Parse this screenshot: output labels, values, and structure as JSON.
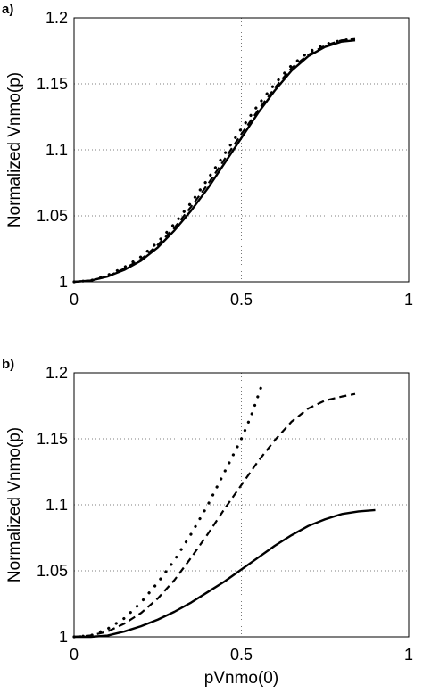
{
  "chart_data": [
    {
      "panel_label": "a)",
      "type": "line",
      "ylabel": "Normalized Vnmo(p)",
      "xlabel": "",
      "xlim": [
        0,
        1
      ],
      "ylim": [
        1,
        1.2
      ],
      "xticks": [
        "0",
        "0.5",
        "1"
      ],
      "yticks": [
        "1",
        "1.05",
        "1.1",
        "1.15",
        "1.2"
      ],
      "grid": true,
      "series": [
        {
          "style": "solid",
          "x": [
            0,
            0.05,
            0.1,
            0.15,
            0.2,
            0.25,
            0.3,
            0.35,
            0.4,
            0.45,
            0.5,
            0.55,
            0.6,
            0.65,
            0.7,
            0.75,
            0.8,
            0.84
          ],
          "y": [
            1.0,
            1.001,
            1.004,
            1.009,
            1.016,
            1.026,
            1.039,
            1.054,
            1.071,
            1.09,
            1.109,
            1.128,
            1.145,
            1.16,
            1.171,
            1.178,
            1.182,
            1.183
          ]
        },
        {
          "style": "dashed",
          "x": [
            0,
            0.05,
            0.1,
            0.15,
            0.2,
            0.25,
            0.3,
            0.35,
            0.4,
            0.45,
            0.5,
            0.55,
            0.6,
            0.65,
            0.7,
            0.75,
            0.8,
            0.84
          ],
          "y": [
            1.0,
            1.001,
            1.004,
            1.01,
            1.017,
            1.028,
            1.041,
            1.057,
            1.074,
            1.093,
            1.112,
            1.13,
            1.147,
            1.162,
            1.172,
            1.179,
            1.183,
            1.184
          ]
        },
        {
          "style": "dotted",
          "x": [
            0,
            0.05,
            0.1,
            0.15,
            0.2,
            0.25,
            0.3,
            0.35,
            0.4,
            0.45,
            0.5,
            0.55,
            0.6,
            0.65,
            0.7,
            0.75,
            0.8,
            0.84
          ],
          "y": [
            1.0,
            1.001,
            1.005,
            1.011,
            1.019,
            1.03,
            1.044,
            1.06,
            1.078,
            1.097,
            1.116,
            1.134,
            1.15,
            1.164,
            1.174,
            1.18,
            1.183,
            1.184
          ]
        }
      ]
    },
    {
      "panel_label": "b)",
      "type": "line",
      "ylabel": "Normalized Vnmo(p)",
      "xlabel": "pVnmo(0)",
      "xlim": [
        0,
        1
      ],
      "ylim": [
        1,
        1.2
      ],
      "xticks": [
        "0",
        "0.5",
        "1"
      ],
      "yticks": [
        "1",
        "1.05",
        "1.1",
        "1.15",
        "1.2"
      ],
      "grid": true,
      "series": [
        {
          "style": "solid",
          "x": [
            0,
            0.05,
            0.1,
            0.15,
            0.2,
            0.25,
            0.3,
            0.35,
            0.4,
            0.45,
            0.5,
            0.55,
            0.6,
            0.65,
            0.7,
            0.75,
            0.8,
            0.85,
            0.9
          ],
          "y": [
            1.0,
            1.0,
            1.001,
            1.004,
            1.008,
            1.013,
            1.019,
            1.026,
            1.034,
            1.042,
            1.051,
            1.06,
            1.069,
            1.077,
            1.084,
            1.089,
            1.093,
            1.095,
            1.096
          ]
        },
        {
          "style": "dashed",
          "x": [
            0,
            0.05,
            0.1,
            0.15,
            0.2,
            0.25,
            0.3,
            0.35,
            0.4,
            0.45,
            0.5,
            0.55,
            0.6,
            0.65,
            0.7,
            0.75,
            0.8,
            0.84
          ],
          "y": [
            1.0,
            1.001,
            1.004,
            1.01,
            1.018,
            1.029,
            1.043,
            1.06,
            1.078,
            1.097,
            1.115,
            1.133,
            1.149,
            1.163,
            1.173,
            1.179,
            1.182,
            1.184
          ]
        },
        {
          "style": "dotted",
          "x": [
            0,
            0.05,
            0.1,
            0.15,
            0.2,
            0.25,
            0.3,
            0.35,
            0.4,
            0.45,
            0.5,
            0.53,
            0.56
          ],
          "y": [
            1.0,
            1.001,
            1.006,
            1.014,
            1.026,
            1.041,
            1.058,
            1.078,
            1.1,
            1.125,
            1.15,
            1.168,
            1.19
          ]
        }
      ]
    }
  ]
}
